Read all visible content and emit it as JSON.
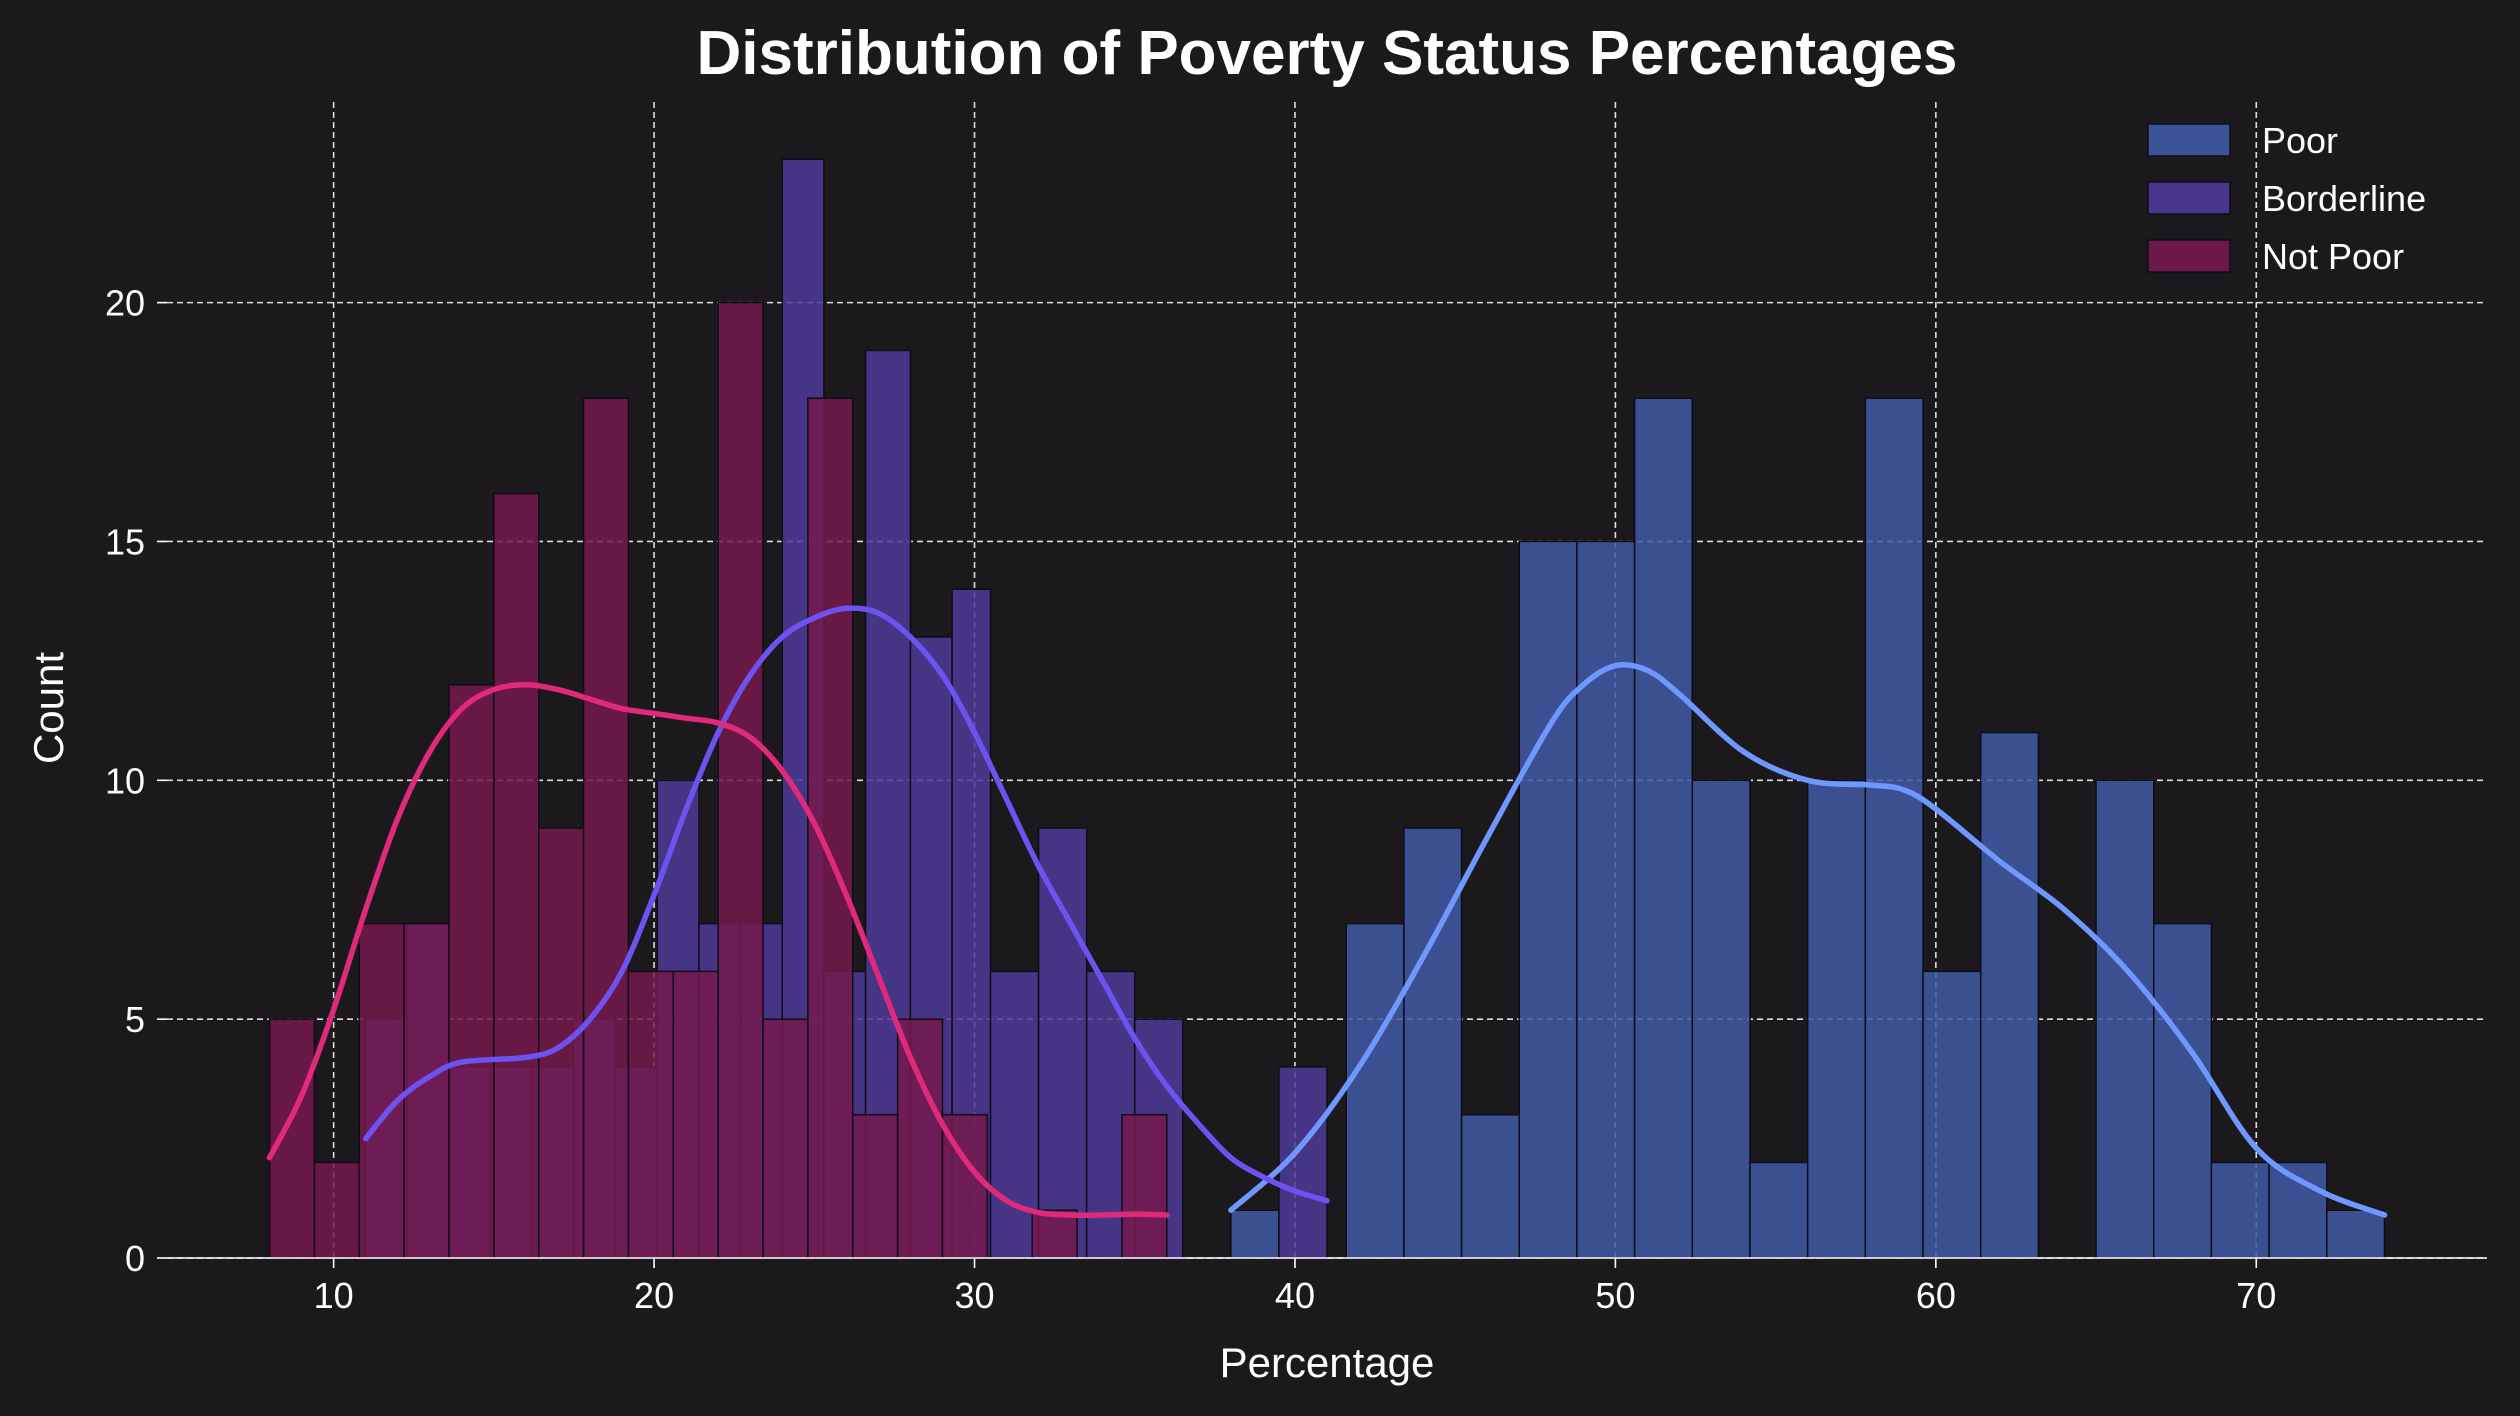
{
  "chart_data": {
    "type": "histogram",
    "title": "Distribution of Poverty Status Percentages",
    "xlabel": "Percentage",
    "ylabel": "Count",
    "xlim": [
      4.8,
      77.2
    ],
    "ylim": [
      0,
      24.2
    ],
    "xticks": [
      10,
      20,
      30,
      40,
      50,
      60,
      70
    ],
    "yticks": [
      0,
      5,
      10,
      15,
      20
    ],
    "grid": true,
    "legend_position": "top-right",
    "colors": {
      "background": "#1b191c",
      "grid": "#ffffff",
      "axis_line": "#ffffff"
    },
    "series": [
      {
        "name": "Poor",
        "color": "#3f5aa5",
        "line_color": "#6e98ff",
        "bins": [
          {
            "x0": 38.0,
            "x1": 39.5,
            "count": 1
          },
          {
            "x0": 41.6,
            "x1": 43.4,
            "count": 7
          },
          {
            "x0": 43.4,
            "x1": 45.2,
            "count": 9
          },
          {
            "x0": 45.2,
            "x1": 47.0,
            "count": 3
          },
          {
            "x0": 47.0,
            "x1": 48.8,
            "count": 15
          },
          {
            "x0": 48.8,
            "x1": 50.6,
            "count": 15
          },
          {
            "x0": 50.6,
            "x1": 52.4,
            "count": 18
          },
          {
            "x0": 52.4,
            "x1": 54.2,
            "count": 10
          },
          {
            "x0": 54.2,
            "x1": 56.0,
            "count": 2
          },
          {
            "x0": 56.0,
            "x1": 57.8,
            "count": 10
          },
          {
            "x0": 57.8,
            "x1": 59.6,
            "count": 18
          },
          {
            "x0": 59.6,
            "x1": 61.4,
            "count": 6
          },
          {
            "x0": 61.4,
            "x1": 63.2,
            "count": 11
          },
          {
            "x0": 65.0,
            "x1": 66.8,
            "count": 10
          },
          {
            "x0": 66.8,
            "x1": 68.6,
            "count": 7
          },
          {
            "x0": 68.6,
            "x1": 70.4,
            "count": 2
          },
          {
            "x0": 70.4,
            "x1": 72.2,
            "count": 2
          },
          {
            "x0": 72.2,
            "x1": 74.0,
            "count": 1
          }
        ],
        "kde": [
          [
            38,
            1.0
          ],
          [
            40,
            2.2
          ],
          [
            42,
            4.0
          ],
          [
            44,
            6.3
          ],
          [
            46,
            8.8
          ],
          [
            48,
            11.2
          ],
          [
            49,
            12.0
          ],
          [
            50,
            12.4
          ],
          [
            51,
            12.3
          ],
          [
            52,
            11.8
          ],
          [
            54,
            10.6
          ],
          [
            56,
            10.0
          ],
          [
            58,
            9.9
          ],
          [
            59,
            9.8
          ],
          [
            60,
            9.4
          ],
          [
            62,
            8.3
          ],
          [
            64,
            7.3
          ],
          [
            66,
            6.0
          ],
          [
            68,
            4.3
          ],
          [
            70,
            2.3
          ],
          [
            72,
            1.4
          ],
          [
            74,
            0.9
          ]
        ]
      },
      {
        "name": "Borderline",
        "color": "#4d3a98",
        "line_color": "#6c52f0",
        "bins": [
          {
            "x0": 11.0,
            "x1": 12.3,
            "count": 5
          },
          {
            "x0": 12.3,
            "x1": 13.6,
            "count": 7
          },
          {
            "x0": 13.6,
            "x1": 14.9,
            "count": 4
          },
          {
            "x0": 14.9,
            "x1": 16.2,
            "count": 4
          },
          {
            "x0": 16.2,
            "x1": 17.5,
            "count": 4
          },
          {
            "x0": 17.5,
            "x1": 18.8,
            "count": 5
          },
          {
            "x0": 18.8,
            "x1": 20.1,
            "count": 4
          },
          {
            "x0": 20.1,
            "x1": 21.4,
            "count": 10
          },
          {
            "x0": 21.4,
            "x1": 22.7,
            "count": 7
          },
          {
            "x0": 22.7,
            "x1": 24.0,
            "count": 7
          },
          {
            "x0": 24.0,
            "x1": 25.3,
            "count": 23
          },
          {
            "x0": 25.3,
            "x1": 26.6,
            "count": 6
          },
          {
            "x0": 26.6,
            "x1": 28.0,
            "count": 19
          },
          {
            "x0": 28.0,
            "x1": 29.3,
            "count": 13
          },
          {
            "x0": 29.3,
            "x1": 30.5,
            "count": 14
          },
          {
            "x0": 30.5,
            "x1": 32.0,
            "count": 6
          },
          {
            "x0": 32.0,
            "x1": 33.5,
            "count": 9
          },
          {
            "x0": 33.5,
            "x1": 35.0,
            "count": 6
          },
          {
            "x0": 35.0,
            "x1": 36.5,
            "count": 5
          },
          {
            "x0": 39.5,
            "x1": 41.0,
            "count": 4
          }
        ],
        "kde": [
          [
            11,
            2.5
          ],
          [
            12,
            3.3
          ],
          [
            13,
            3.8
          ],
          [
            14,
            4.1
          ],
          [
            16,
            4.2
          ],
          [
            17,
            4.4
          ],
          [
            18,
            5.0
          ],
          [
            19,
            6.0
          ],
          [
            20,
            7.6
          ],
          [
            21,
            9.4
          ],
          [
            22,
            11.0
          ],
          [
            23,
            12.2
          ],
          [
            24,
            13.0
          ],
          [
            25,
            13.4
          ],
          [
            26,
            13.6
          ],
          [
            27,
            13.5
          ],
          [
            28,
            13.0
          ],
          [
            29,
            12.2
          ],
          [
            30,
            11.0
          ],
          [
            31,
            9.6
          ],
          [
            32,
            8.2
          ],
          [
            33,
            7.0
          ],
          [
            34,
            5.8
          ],
          [
            35,
            4.6
          ],
          [
            36,
            3.6
          ],
          [
            37,
            2.8
          ],
          [
            38,
            2.1
          ],
          [
            39,
            1.7
          ],
          [
            40,
            1.4
          ],
          [
            41,
            1.2
          ]
        ]
      },
      {
        "name": "Not Poor",
        "color": "#76194c",
        "line_color": "#e0297a",
        "bins": [
          {
            "x0": 8.0,
            "x1": 9.4,
            "count": 5
          },
          {
            "x0": 9.4,
            "x1": 10.8,
            "count": 2
          },
          {
            "x0": 10.8,
            "x1": 12.2,
            "count": 7
          },
          {
            "x0": 12.2,
            "x1": 13.6,
            "count": 7
          },
          {
            "x0": 13.6,
            "x1": 15.0,
            "count": 12
          },
          {
            "x0": 15.0,
            "x1": 16.4,
            "count": 16
          },
          {
            "x0": 16.4,
            "x1": 17.8,
            "count": 9
          },
          {
            "x0": 17.8,
            "x1": 19.2,
            "count": 18
          },
          {
            "x0": 19.2,
            "x1": 20.6,
            "count": 6
          },
          {
            "x0": 20.6,
            "x1": 22.0,
            "count": 6
          },
          {
            "x0": 22.0,
            "x1": 23.4,
            "count": 20
          },
          {
            "x0": 23.4,
            "x1": 24.8,
            "count": 5
          },
          {
            "x0": 24.8,
            "x1": 26.2,
            "count": 18
          },
          {
            "x0": 26.2,
            "x1": 27.6,
            "count": 3
          },
          {
            "x0": 27.6,
            "x1": 29.0,
            "count": 5
          },
          {
            "x0": 29.0,
            "x1": 30.4,
            "count": 3
          },
          {
            "x0": 31.8,
            "x1": 33.2,
            "count": 1
          },
          {
            "x0": 34.6,
            "x1": 36.0,
            "count": 3
          }
        ],
        "kde": [
          [
            8,
            2.1
          ],
          [
            9,
            3.4
          ],
          [
            10,
            5.2
          ],
          [
            11,
            7.3
          ],
          [
            12,
            9.2
          ],
          [
            13,
            10.6
          ],
          [
            14,
            11.5
          ],
          [
            15,
            11.9
          ],
          [
            16,
            12.0
          ],
          [
            17,
            11.9
          ],
          [
            18,
            11.7
          ],
          [
            19,
            11.5
          ],
          [
            20,
            11.4
          ],
          [
            21,
            11.3
          ],
          [
            22,
            11.2
          ],
          [
            23,
            10.9
          ],
          [
            24,
            10.2
          ],
          [
            25,
            9.1
          ],
          [
            26,
            7.6
          ],
          [
            27,
            5.9
          ],
          [
            28,
            4.2
          ],
          [
            29,
            2.8
          ],
          [
            30,
            1.8
          ],
          [
            31,
            1.2
          ],
          [
            32,
            0.95
          ],
          [
            33,
            0.9
          ],
          [
            34,
            0.9
          ],
          [
            35,
            0.92
          ],
          [
            36,
            0.9
          ]
        ]
      }
    ]
  }
}
